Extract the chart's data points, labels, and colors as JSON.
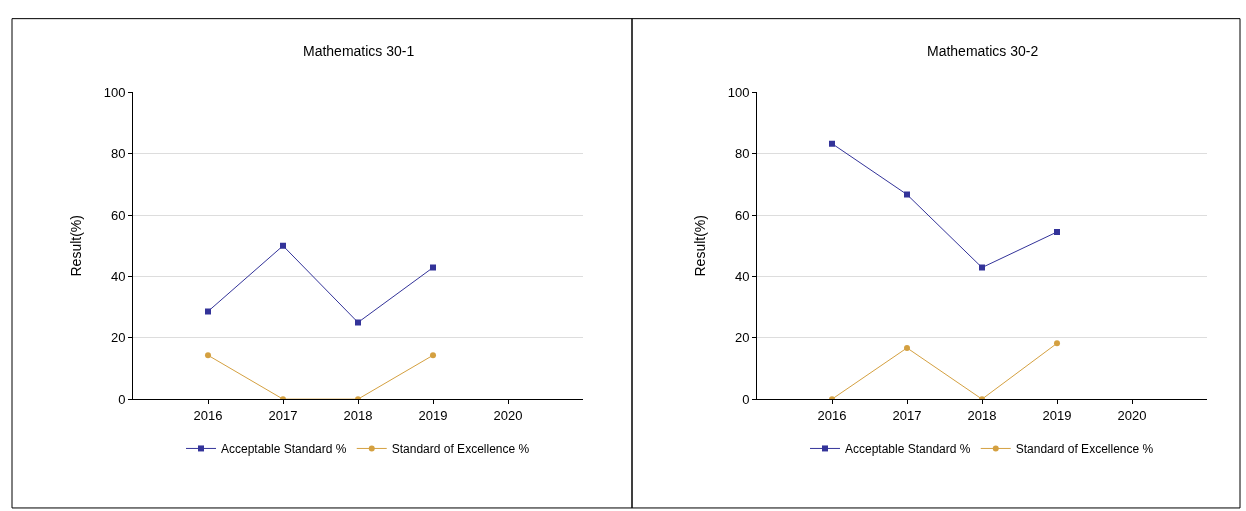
{
  "chart_data": [
    {
      "type": "line",
      "title": "Mathematics 30-1",
      "ylabel": "Result(%)",
      "x": [
        2016,
        2017,
        2018,
        2019
      ],
      "xlim": [
        2015,
        2021
      ],
      "xticks": [
        2016,
        2017,
        2018,
        2019,
        2020
      ],
      "ylim": [
        0,
        100
      ],
      "yticks": [
        0,
        20,
        40,
        60,
        80,
        100
      ],
      "grid": "y",
      "legend": "bottom",
      "series": [
        {
          "name": "Acceptable Standard %",
          "color": "#333399",
          "marker": "square",
          "values": [
            28.6,
            50,
            25,
            42.9
          ]
        },
        {
          "name": "Standard of Excellence %",
          "color": "#d4a040",
          "marker": "circle",
          "values": [
            14.3,
            0,
            0,
            14.3
          ]
        }
      ]
    },
    {
      "type": "line",
      "title": "Mathematics 30-2",
      "ylabel": "Result(%)",
      "x": [
        2016,
        2017,
        2018,
        2019
      ],
      "xlim": [
        2015,
        2021
      ],
      "xticks": [
        2016,
        2017,
        2018,
        2019,
        2020
      ],
      "ylim": [
        0,
        100
      ],
      "yticks": [
        0,
        20,
        40,
        60,
        80,
        100
      ],
      "grid": "y",
      "legend": "bottom",
      "series": [
        {
          "name": "Acceptable Standard %",
          "color": "#333399",
          "marker": "square",
          "values": [
            83.3,
            66.7,
            42.9,
            54.5
          ]
        },
        {
          "name": "Standard of Excellence %",
          "color": "#d4a040",
          "marker": "circle",
          "values": [
            0,
            16.7,
            0,
            18.2
          ]
        }
      ]
    }
  ]
}
